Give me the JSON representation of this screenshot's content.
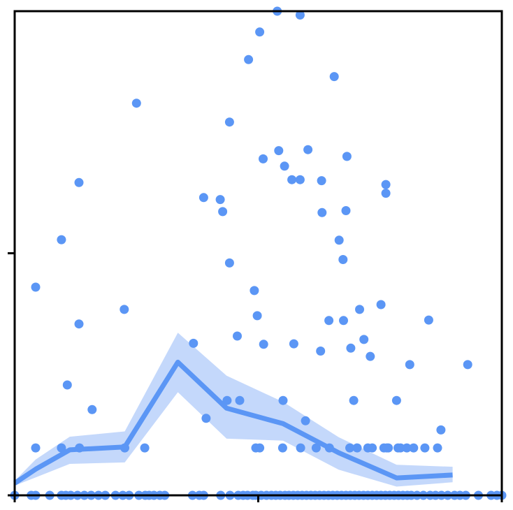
{
  "chart_data": {
    "type": "scatter",
    "title": "",
    "xlabel": "",
    "ylabel": "",
    "xlim": [
      0,
      100
    ],
    "ylim": [
      0,
      100
    ],
    "grid": false,
    "legend": "none",
    "colors": {
      "points": "#5b96f5",
      "line": "#5b96f5",
      "band": "#c4d8fb",
      "axis": "#000000"
    },
    "x_ticks": [
      0,
      50,
      100
    ],
    "y_ticks": [
      0,
      50
    ],
    "points": [
      [
        0,
        0
      ],
      [
        3.4,
        0
      ],
      [
        4.3,
        0
      ],
      [
        7.2,
        0
      ],
      [
        9.6,
        0
      ],
      [
        10.5,
        0
      ],
      [
        11.5,
        0
      ],
      [
        12.9,
        0
      ],
      [
        14.3,
        0
      ],
      [
        15.7,
        0
      ],
      [
        17.2,
        0
      ],
      [
        18.6,
        0
      ],
      [
        20.7,
        0
      ],
      [
        22.2,
        0
      ],
      [
        23.5,
        0
      ],
      [
        25.5,
        0
      ],
      [
        26.8,
        0
      ],
      [
        27.6,
        0
      ],
      [
        28.6,
        0
      ],
      [
        29.8,
        0
      ],
      [
        30.8,
        0
      ],
      [
        36.5,
        0
      ],
      [
        37.9,
        0
      ],
      [
        38.8,
        0
      ],
      [
        42.3,
        0
      ],
      [
        44.2,
        0
      ],
      [
        45.9,
        0
      ],
      [
        46.9,
        0
      ],
      [
        47.8,
        0
      ],
      [
        48.9,
        0
      ],
      [
        49.5,
        0
      ],
      [
        50.6,
        0
      ],
      [
        51.7,
        0
      ],
      [
        52.7,
        0
      ],
      [
        53.6,
        0
      ],
      [
        54.5,
        0
      ],
      [
        55.5,
        0
      ],
      [
        56.3,
        0
      ],
      [
        57.2,
        0
      ],
      [
        58.1,
        0
      ],
      [
        59.0,
        0
      ],
      [
        59.9,
        0
      ],
      [
        60.8,
        0
      ],
      [
        61.7,
        0
      ],
      [
        62.6,
        0
      ],
      [
        63.5,
        0
      ],
      [
        64.4,
        0
      ],
      [
        65.3,
        0
      ],
      [
        66.2,
        0
      ],
      [
        67.1,
        0
      ],
      [
        68.0,
        0
      ],
      [
        68.9,
        0
      ],
      [
        69.8,
        0
      ],
      [
        70.7,
        0
      ],
      [
        71.6,
        0
      ],
      [
        72.5,
        0
      ],
      [
        73.4,
        0
      ],
      [
        74.3,
        0
      ],
      [
        75.2,
        0
      ],
      [
        76.1,
        0
      ],
      [
        77.0,
        0
      ],
      [
        77.9,
        0
      ],
      [
        78.8,
        0
      ],
      [
        79.7,
        0
      ],
      [
        80.6,
        0
      ],
      [
        81.4,
        0
      ],
      [
        82.6,
        0
      ],
      [
        83.9,
        0
      ],
      [
        85.3,
        0
      ],
      [
        86.4,
        0
      ],
      [
        87.6,
        0
      ],
      [
        88.9,
        0
      ],
      [
        90.3,
        0
      ],
      [
        91.4,
        0
      ],
      [
        92.6,
        0
      ],
      [
        95.2,
        0
      ],
      [
        97.8,
        0
      ],
      [
        99.0,
        0
      ],
      [
        100,
        0
      ],
      [
        4.3,
        9.8
      ],
      [
        9.6,
        9.8
      ],
      [
        13.3,
        9.8
      ],
      [
        22.6,
        9.8
      ],
      [
        26.7,
        9.8
      ],
      [
        49.5,
        9.8
      ],
      [
        50.3,
        9.8
      ],
      [
        55.0,
        9.8
      ],
      [
        58.7,
        9.8
      ],
      [
        61.9,
        9.8
      ],
      [
        64.6,
        9.8
      ],
      [
        68.8,
        9.8
      ],
      [
        70.3,
        9.8
      ],
      [
        72.5,
        9.8
      ],
      [
        73.4,
        9.8
      ],
      [
        75.8,
        9.8
      ],
      [
        76.7,
        9.8
      ],
      [
        76.4,
        9.8
      ],
      [
        78.7,
        9.8
      ],
      [
        79.2,
        9.8
      ],
      [
        80.5,
        9.8
      ],
      [
        81.9,
        9.8
      ],
      [
        84.2,
        9.8
      ],
      [
        86.8,
        9.8
      ],
      [
        10.8,
        22.8
      ],
      [
        15.9,
        17.7
      ],
      [
        39.3,
        15.9
      ],
      [
        43.6,
        19.6
      ],
      [
        46.2,
        19.6
      ],
      [
        55.1,
        19.6
      ],
      [
        59.7,
        15.4
      ],
      [
        69.6,
        19.6
      ],
      [
        78.4,
        19.6
      ],
      [
        81.1,
        27.0
      ],
      [
        87.5,
        13.5
      ],
      [
        93.0,
        27.0
      ],
      [
        4.3,
        43.0
      ],
      [
        13.2,
        35.4
      ],
      [
        22.5,
        38.4
      ],
      [
        36.7,
        31.4
      ],
      [
        45.7,
        32.9
      ],
      [
        49.8,
        37.1
      ],
      [
        51.1,
        31.2
      ],
      [
        57.3,
        31.3
      ],
      [
        62.8,
        29.8
      ],
      [
        67.5,
        36.1
      ],
      [
        69.0,
        30.4
      ],
      [
        70.8,
        38.4
      ],
      [
        73.0,
        28.7
      ],
      [
        71.7,
        32.2
      ],
      [
        75.2,
        39.4
      ],
      [
        85.0,
        36.2
      ],
      [
        9.6,
        52.8
      ],
      [
        13.2,
        64.6
      ],
      [
        25.0,
        81.0
      ],
      [
        38.8,
        61.5
      ],
      [
        42.2,
        61.1
      ],
      [
        42.7,
        58.6
      ],
      [
        44.1,
        77.1
      ],
      [
        44.1,
        48.0
      ],
      [
        48.0,
        90.0
      ],
      [
        49.2,
        42.3
      ],
      [
        50.3,
        95.7
      ],
      [
        51.0,
        69.5
      ],
      [
        53.9,
        100
      ],
      [
        54.2,
        71.2
      ],
      [
        55.4,
        68.0
      ],
      [
        56.9,
        65.2
      ],
      [
        58.6,
        99.2
      ],
      [
        58.6,
        65.2
      ],
      [
        60.2,
        71.4
      ],
      [
        63.0,
        65.0
      ],
      [
        63.1,
        58.4
      ],
      [
        64.5,
        36.1
      ],
      [
        65.6,
        86.5
      ],
      [
        66.6,
        52.7
      ],
      [
        67.4,
        48.7
      ],
      [
        68.0,
        58.8
      ],
      [
        68.2,
        70.0
      ],
      [
        76.2,
        64.2
      ],
      [
        76.2,
        62.4
      ]
    ],
    "trend_line": {
      "x": [
        0,
        4.3,
        11.3,
        22.6,
        33.5,
        43.5,
        55.1,
        66.5,
        78.4,
        89.9
      ],
      "y": [
        2.5,
        5.4,
        9.4,
        10.0,
        27.5,
        18.0,
        14.8,
        8.8,
        3.6,
        4.2
      ]
    },
    "confidence_band": {
      "x": [
        0,
        4.3,
        11.3,
        22.6,
        33.5,
        43.5,
        55.1,
        66.5,
        78.4,
        89.9
      ],
      "lower": [
        2.0,
        3.7,
        6.5,
        6.8,
        21.3,
        11.7,
        11.3,
        5.3,
        1.8,
        2.7
      ],
      "upper": [
        3.0,
        7.4,
        12.1,
        13.2,
        33.6,
        24.7,
        19.3,
        12.0,
        6.3,
        5.9
      ]
    }
  }
}
